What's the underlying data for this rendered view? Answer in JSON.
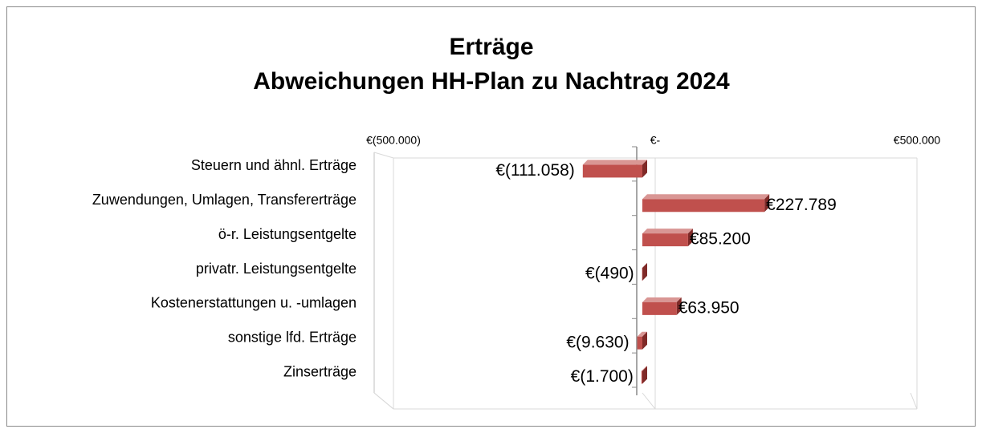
{
  "chart_data": {
    "type": "bar",
    "orientation": "horizontal",
    "title": "Erträge",
    "subtitle": "Abweichungen HH-Plan zu Nachtrag 2024",
    "categories": [
      "Steuern und ähnl. Erträge",
      "Zuwendungen, Umlagen, Transfererträge",
      "ö-r. Leistungsentgelte",
      "privatr. Leistungsentgelte",
      "Kostenerstattungen u. -umlagen",
      "sonstige lfd. Erträge",
      "Zinserträge"
    ],
    "values": [
      -111058,
      227789,
      85200,
      -490,
      63950,
      -9630,
      -1700
    ],
    "value_labels": [
      "€(111.058)",
      "€227.789",
      "€85.200",
      "€(490)",
      "€63.950",
      "€(9.630)",
      "€(1.700)"
    ],
    "color": "#c0504d",
    "xlim": [
      -500000,
      500000
    ],
    "xticks": [
      {
        "value": -500000,
        "label": "€(500.000)"
      },
      {
        "value": 0,
        "label": "€-"
      },
      {
        "value": 500000,
        "label": "€500.000"
      }
    ],
    "grid": true
  }
}
